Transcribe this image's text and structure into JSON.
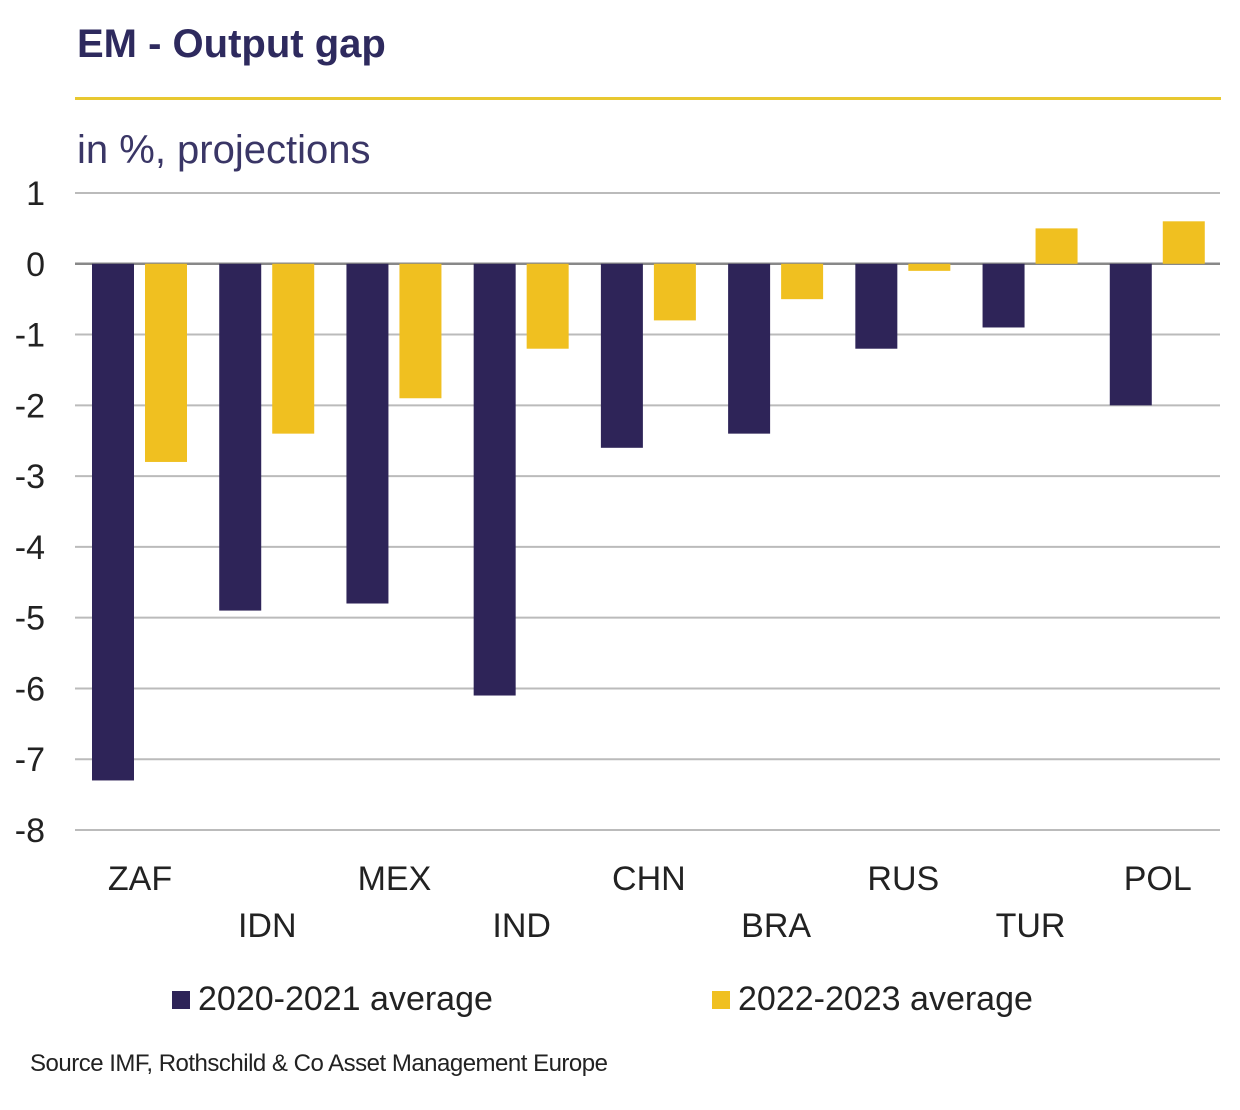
{
  "chart_data": {
    "type": "bar",
    "title": "EM - Output gap",
    "subtitle": "in %, projections",
    "categories": [
      "ZAF",
      "IDN",
      "MEX",
      "IND",
      "CHN",
      "BRA",
      "RUS",
      "TUR",
      "POL"
    ],
    "series": [
      {
        "name": "2020-2021 average",
        "color": "#2e2458",
        "values": [
          -7.3,
          -4.9,
          -4.8,
          -6.1,
          -2.6,
          -2.4,
          -1.2,
          -0.9,
          -2.0
        ]
      },
      {
        "name": "2022-2023 average",
        "color": "#f0c020",
        "values": [
          -2.8,
          -2.4,
          -1.9,
          -1.2,
          -0.8,
          -0.5,
          -0.1,
          0.5,
          0.6
        ]
      }
    ],
    "ylim": [
      -8,
      1
    ],
    "yticks": [
      1,
      0,
      -1,
      -2,
      -3,
      -4,
      -5,
      -6,
      -7,
      -8
    ],
    "grid": true,
    "legend": "bottom",
    "xlabel": "",
    "ylabel": ""
  },
  "source": "Source IMF, Rothschild & Co Asset Management Europe"
}
